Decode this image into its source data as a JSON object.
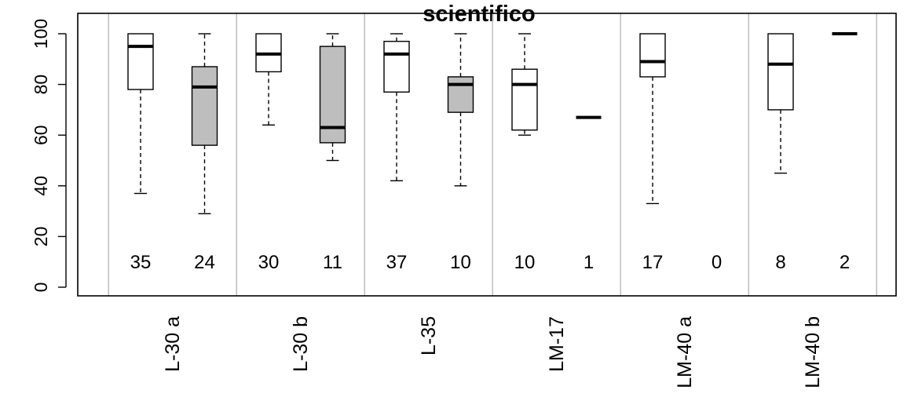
{
  "chart_data": {
    "type": "boxplot",
    "title": "scientifico",
    "xlabel": "",
    "ylabel": "",
    "ylim": [
      0,
      100
    ],
    "yticks": [
      0,
      20,
      40,
      60,
      80,
      100
    ],
    "grid": false,
    "colors": {
      "white_box": "#ffffff",
      "gray_box": "#bebebe",
      "separator": "#bebebe"
    },
    "groups": [
      {
        "label": "L-30 a",
        "boxes": [
          {
            "fill": "white",
            "count": "35",
            "min": 37,
            "q1": 78,
            "median": 95,
            "q3": 100,
            "max": 100
          },
          {
            "fill": "gray",
            "count": "24",
            "min": 29,
            "q1": 56,
            "median": 79,
            "q3": 87,
            "max": 100
          }
        ]
      },
      {
        "label": "L-30 b",
        "boxes": [
          {
            "fill": "white",
            "count": "30",
            "min": 64,
            "q1": 85,
            "median": 92,
            "q3": 100,
            "max": 100
          },
          {
            "fill": "gray",
            "count": "11",
            "min": 50,
            "q1": 57,
            "median": 63,
            "q3": 95,
            "max": 100
          }
        ]
      },
      {
        "label": "L-35",
        "boxes": [
          {
            "fill": "white",
            "count": "37",
            "min": 42,
            "q1": 77,
            "median": 92,
            "q3": 97,
            "max": 100
          },
          {
            "fill": "gray",
            "count": "10",
            "min": 40,
            "q1": 69,
            "median": 80,
            "q3": 83,
            "max": 100
          }
        ]
      },
      {
        "label": "LM-17",
        "boxes": [
          {
            "fill": "white",
            "count": "10",
            "min": 60,
            "q1": 62,
            "median": 80,
            "q3": 86,
            "max": 100
          },
          {
            "fill": "gray",
            "count": "1",
            "min": 67,
            "q1": 67,
            "median": 67,
            "q3": 67,
            "max": 67
          }
        ]
      },
      {
        "label": "LM-40 a",
        "boxes": [
          {
            "fill": "white",
            "count": "17",
            "min": 33,
            "q1": 83,
            "median": 89,
            "q3": 100,
            "max": 100
          },
          {
            "fill": "gray",
            "count": "0",
            "empty": true
          }
        ]
      },
      {
        "label": "LM-40 b",
        "boxes": [
          {
            "fill": "white",
            "count": "8",
            "min": 45,
            "q1": 70,
            "median": 88,
            "q3": 100,
            "max": 100
          },
          {
            "fill": "gray",
            "count": "2",
            "min": 100,
            "q1": 100,
            "median": 100,
            "q3": 100,
            "max": 100
          }
        ]
      }
    ]
  }
}
